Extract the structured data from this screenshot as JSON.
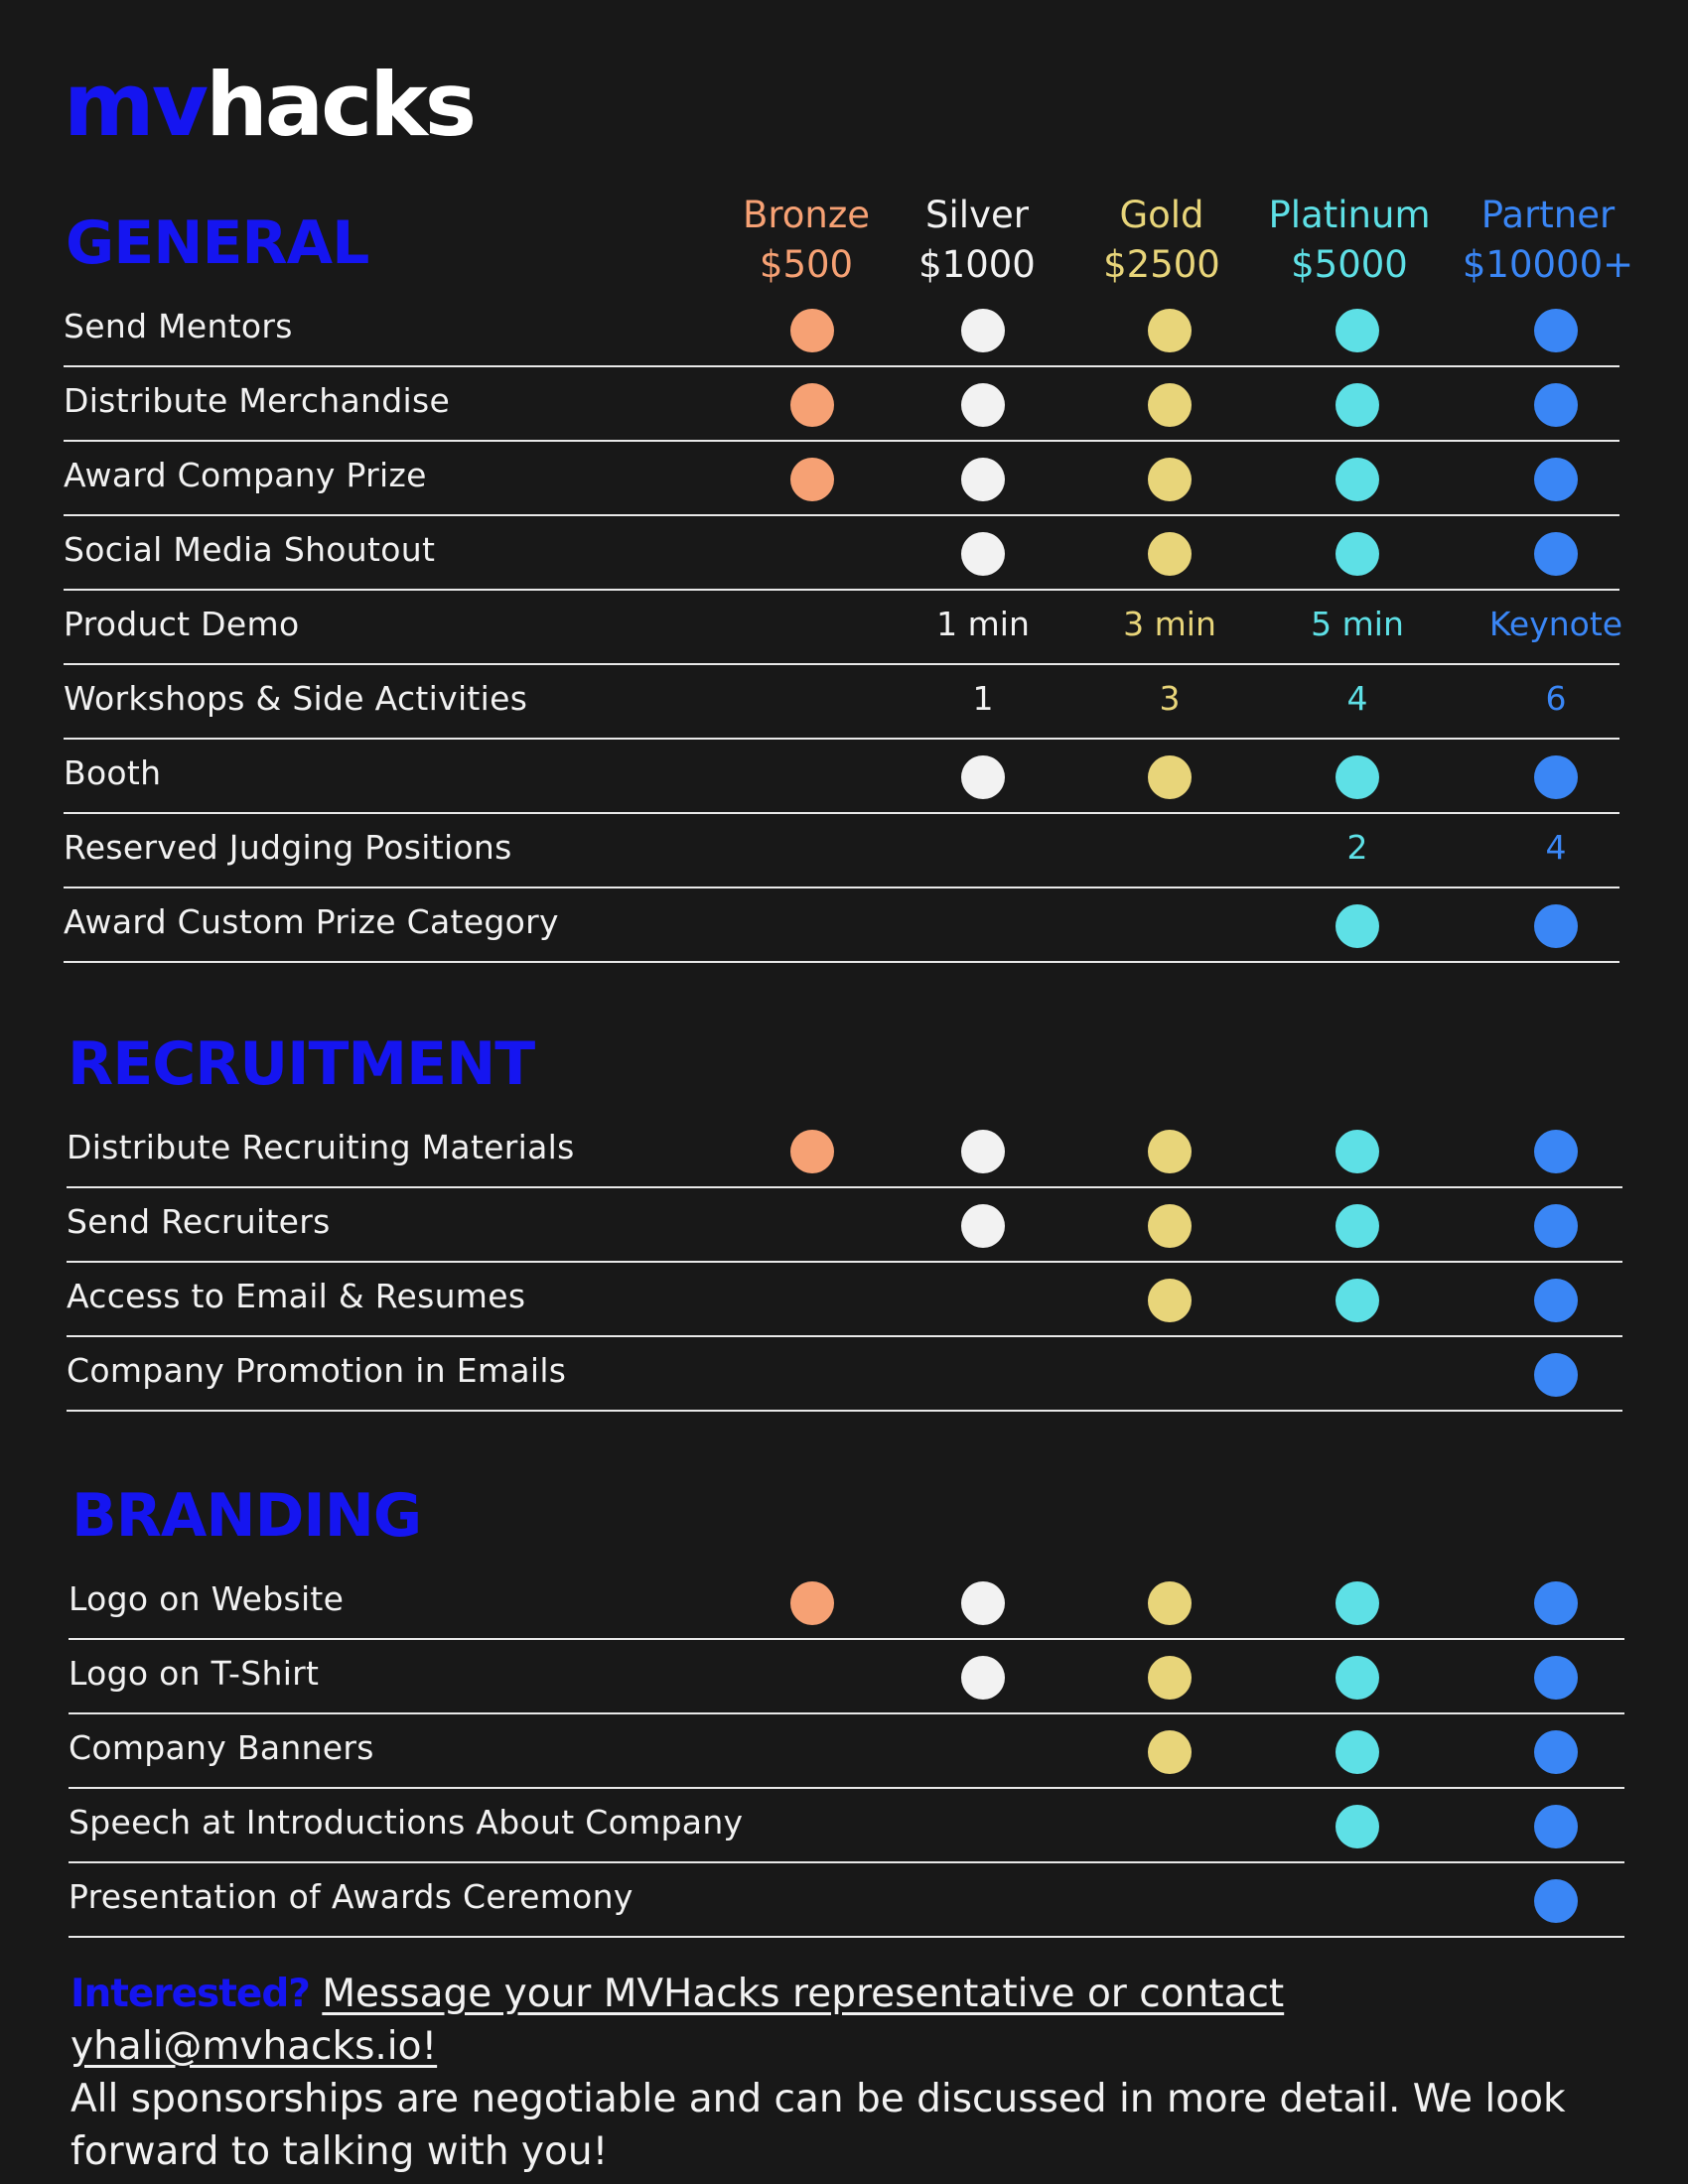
{
  "brand": {
    "part1": "mv",
    "part2": "hacks"
  },
  "colors": {
    "bronze": "#f6a174",
    "silver": "#f2f2f2",
    "gold": "#e8d57a",
    "platinum": "#5ee0e6",
    "partner": "#3a86f5",
    "accent": "#1515f0",
    "background": "#181818"
  },
  "tiers": [
    {
      "key": "bronze",
      "name": "Bronze",
      "price": "$500"
    },
    {
      "key": "silver",
      "name": "Silver",
      "price": "$1000"
    },
    {
      "key": "gold",
      "name": "Gold",
      "price": "$2500"
    },
    {
      "key": "platinum",
      "name": "Platinum",
      "price": "$5000"
    },
    {
      "key": "partner",
      "name": "Partner",
      "price": "$10000+"
    }
  ],
  "sections": [
    {
      "title": "GENERAL",
      "rows": [
        {
          "label": "Send Mentors",
          "cells": [
            "dot",
            "dot",
            "dot",
            "dot",
            "dot"
          ]
        },
        {
          "label": "Distribute Merchandise",
          "cells": [
            "dot",
            "dot",
            "dot",
            "dot",
            "dot"
          ]
        },
        {
          "label": "Award Company Prize",
          "cells": [
            "dot",
            "dot",
            "dot",
            "dot",
            "dot"
          ]
        },
        {
          "label": "Social Media Shoutout",
          "cells": [
            "",
            "dot",
            "dot",
            "dot",
            "dot"
          ]
        },
        {
          "label": "Product Demo",
          "cells": [
            "",
            "1 min",
            "3 min",
            "5 min",
            "Keynote"
          ]
        },
        {
          "label": "Workshops & Side Activities",
          "cells": [
            "",
            "1",
            "3",
            "4",
            "6"
          ]
        },
        {
          "label": "Booth",
          "cells": [
            "",
            "dot",
            "dot",
            "dot",
            "dot"
          ]
        },
        {
          "label": "Reserved Judging Positions",
          "cells": [
            "",
            "",
            "",
            "2",
            "4"
          ]
        },
        {
          "label": "Award Custom Prize Category",
          "cells": [
            "",
            "",
            "",
            "dot",
            "dot"
          ]
        }
      ]
    },
    {
      "title": "RECRUITMENT",
      "rows": [
        {
          "label": "Distribute Recruiting Materials",
          "cells": [
            "dot",
            "dot",
            "dot",
            "dot",
            "dot"
          ]
        },
        {
          "label": "Send Recruiters",
          "cells": [
            "",
            "dot",
            "dot",
            "dot",
            "dot"
          ]
        },
        {
          "label": "Access to Email & Resumes",
          "cells": [
            "",
            "",
            "dot",
            "dot",
            "dot"
          ]
        },
        {
          "label": "Company Promotion in Emails",
          "cells": [
            "",
            "",
            "",
            "",
            "dot"
          ]
        }
      ]
    },
    {
      "title": "BRANDING",
      "rows": [
        {
          "label": "Logo on Website",
          "cells": [
            "dot",
            "dot",
            "dot",
            "dot",
            "dot"
          ]
        },
        {
          "label": "Logo on T-Shirt",
          "cells": [
            "",
            "dot",
            "dot",
            "dot",
            "dot"
          ]
        },
        {
          "label": "Company Banners",
          "cells": [
            "",
            "",
            "dot",
            "dot",
            "dot"
          ]
        },
        {
          "label": "Speech at Introductions About Company",
          "cells": [
            "",
            "",
            "",
            "dot",
            "dot"
          ]
        },
        {
          "label": "Presentation of Awards Ceremony",
          "cells": [
            "",
            "",
            "",
            "",
            "dot"
          ]
        }
      ]
    }
  ],
  "footer": {
    "interested": "Interested?",
    "link_text": "Message your MVHacks representative or contact yhali@mvhacks.io!",
    "body": "All sponsorships are negotiable and can be discussed in more detail. We look forward to talking with you!"
  }
}
